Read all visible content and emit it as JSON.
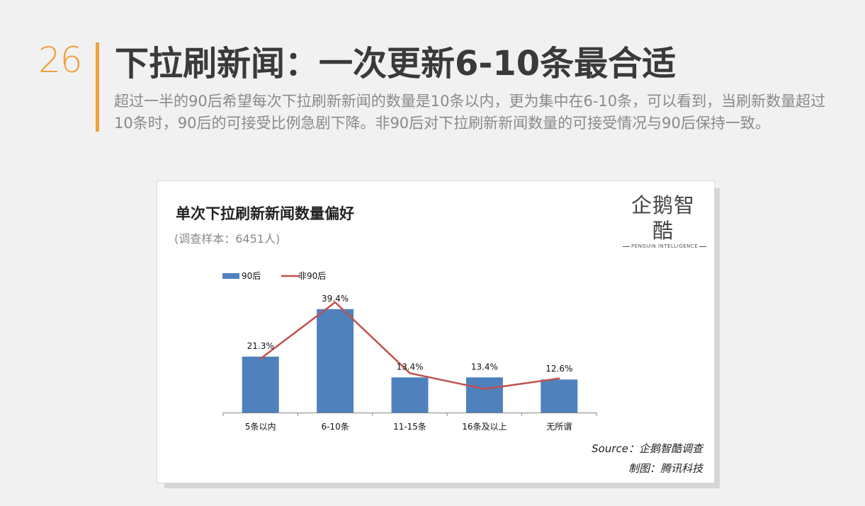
{
  "slide": {
    "page_number": "26",
    "headline": "下拉刷新闻：一次更新6-10条最合适",
    "summary": "超过一半的90后希望每次下拉刷新新闻的数量是10条以内，更为集中在6-10条，可以看到，当刷新数量超过10条时，90后的可接受比例急剧下降。非90后对下拉刷新新闻数量的可接受情况与90后保持一致。",
    "accent_color": "#f0a13c"
  },
  "card": {
    "brand_name": "企鹅智酷",
    "brand_sub": "PENGUIN INTELLIGENCE",
    "source": "Source：企鹅智酷调查",
    "credit": "制图：腾讯科技"
  },
  "chart_data": {
    "type": "bar",
    "title": "单次下拉刷新新闻数量偏好",
    "subtitle": "(调查样本：6451人)",
    "categories": [
      "5条以内",
      "6-10条",
      "11-15条",
      "16条及以上",
      "无所谓"
    ],
    "series": [
      {
        "name": "90后",
        "type": "bar",
        "color": "#4f81bd",
        "values": [
          21.3,
          39.4,
          13.4,
          13.4,
          12.6
        ],
        "labels": [
          "21.3%",
          "39.4%",
          "13.4%",
          "13.4%",
          "12.6%"
        ]
      },
      {
        "name": "非90后",
        "type": "line",
        "color": "#c0504d",
        "values": [
          20.5,
          42.0,
          15.0,
          9.0,
          13.0
        ]
      }
    ],
    "ylim": [
      0,
      45
    ],
    "grid": false,
    "legend": "top-left"
  }
}
